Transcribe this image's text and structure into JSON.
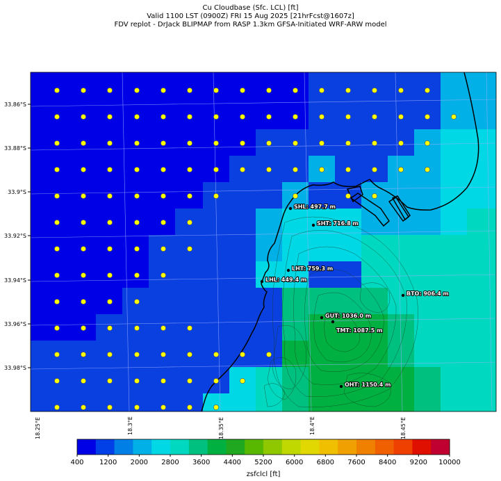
{
  "title": {
    "line1": "Cu Cloudbase (Sfc. LCL) [ft]",
    "line2": "Valid 1100 LST (0900Z) FRI 15 Aug 2025 [21hrFcst@1607z]",
    "line3": "FDV replot - DrJack BLIPMAP from RASP 1.3km GFSA-Initiated WRF-ARW model"
  },
  "lat_labels": [
    "33.86°S",
    "33.88°S",
    "33.9°S",
    "33.92°S",
    "33.94°S",
    "33.96°S",
    "33.98°S"
  ],
  "lon_labels": [
    "18.25°E",
    "18.3°E",
    "18.35°E",
    "18.4°E",
    "18.45°E"
  ],
  "stations": [
    {
      "label": "SHL: 497.7 m"
    },
    {
      "label": "SHT: 716.8 m"
    },
    {
      "label": "LHT: 759.3 m"
    },
    {
      "label": "LHL: 449.4 m"
    },
    {
      "label": "BTO: 906.4 m"
    },
    {
      "label": "GUT: 1036.0 m"
    },
    {
      "label": "TMT: 1087.5 m"
    },
    {
      "label": "OHT: 1150.4 m"
    }
  ],
  "colorbar": {
    "ticks": [
      "400",
      "1200",
      "2000",
      "2800",
      "3600",
      "4400",
      "5200",
      "6000",
      "6800",
      "7600",
      "8400",
      "9200",
      "10000"
    ],
    "label": "zsfclcl [ft]",
    "colors": [
      "#0000e6",
      "#0040e6",
      "#0080e6",
      "#00b0e6",
      "#00d8e6",
      "#00d8c0",
      "#00c080",
      "#00b040",
      "#20a820",
      "#58b800",
      "#90c800",
      "#c0d800",
      "#e0d800",
      "#f0c000",
      "#f0a000",
      "#f08000",
      "#f06000",
      "#f04000",
      "#e01000",
      "#c00030"
    ]
  },
  "legend_colors": {
    "water": "#0000e6",
    "sea_blue": "#0a40e0",
    "light_blue": "#00b0e6",
    "cyan": "#00d8e6",
    "teal": "#00d8c0",
    "green": "#00b040",
    "dot_fill": "#ffff00",
    "coast": "#000000"
  }
}
